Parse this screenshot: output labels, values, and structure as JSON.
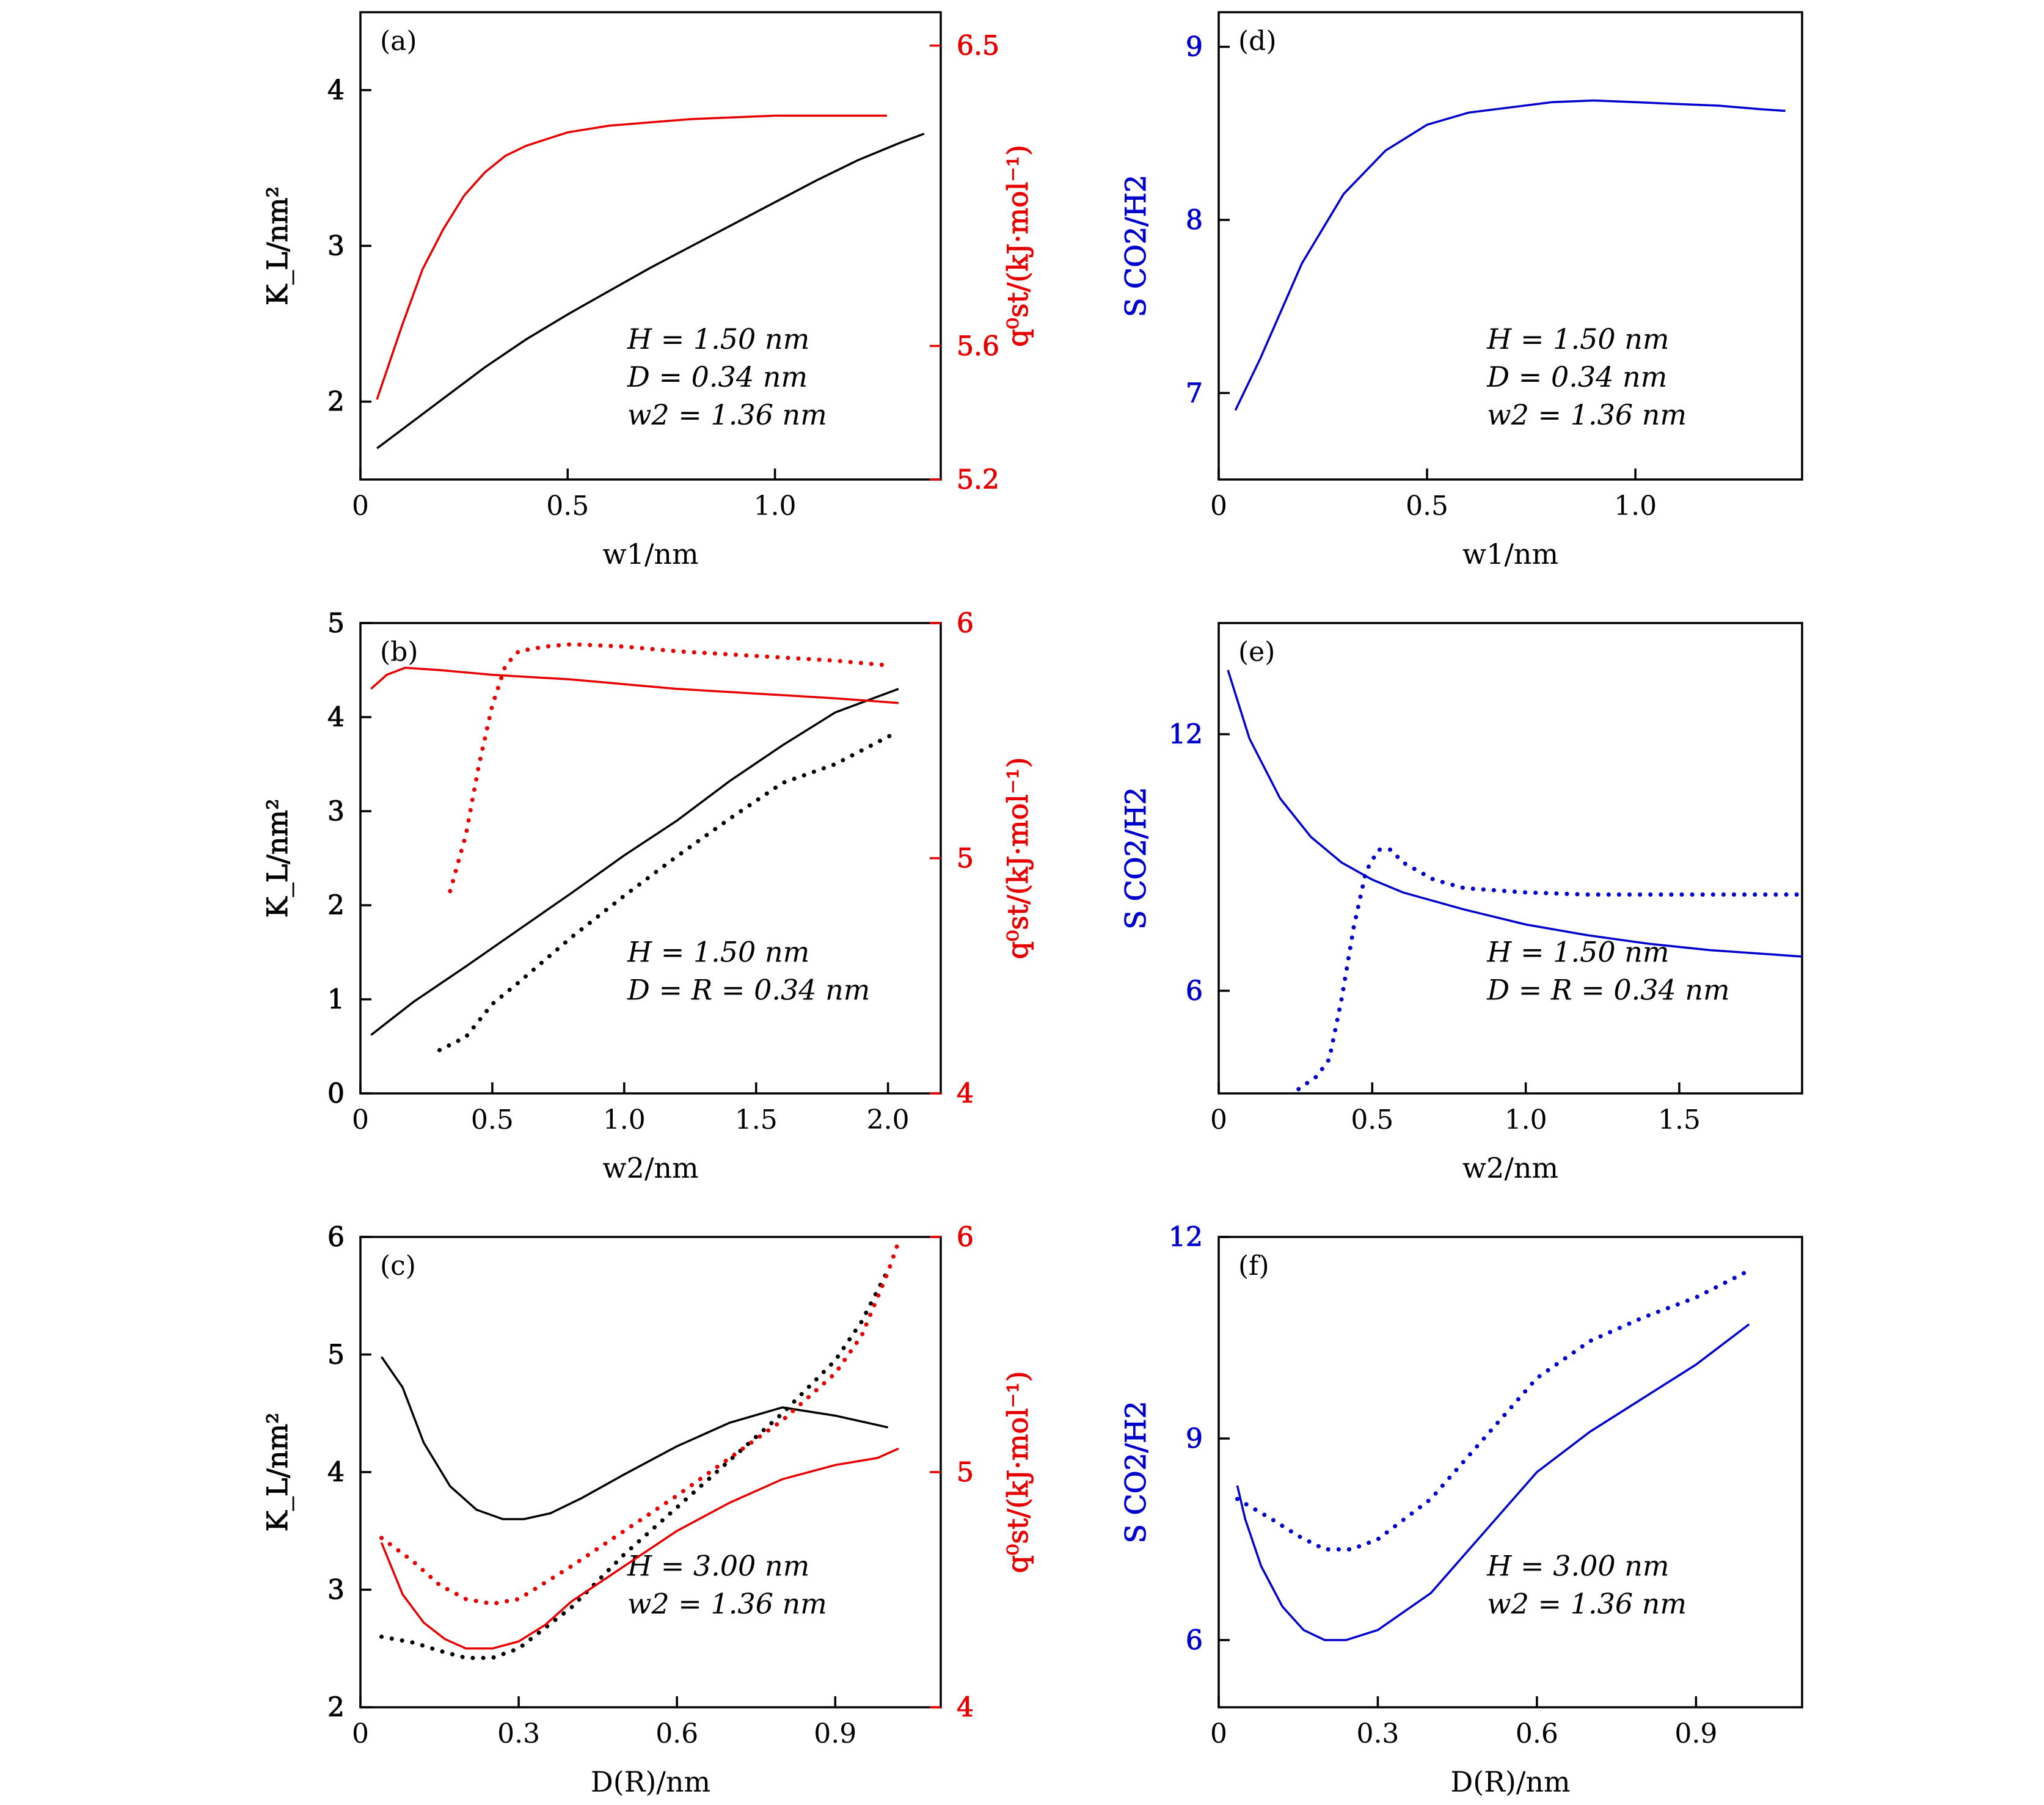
{
  "figure": {
    "label_ylabel_left": "K_L/nm²",
    "label_ylabel_right": "q⁰st/(kJ·mol⁻¹)",
    "label_ylabel_sel": "S CO2/H2",
    "colors": {
      "k": "#000000",
      "q": "#e60000",
      "s": "#0000cc"
    }
  },
  "chart_data": [
    {
      "id": "a",
      "panel_label": "(a)",
      "type": "line",
      "xlabel": "w1/nm",
      "ylabel": "K_L/nm²",
      "y2label": "q⁰st/(kJ·mol⁻¹)",
      "xlim": [
        0,
        1.4
      ],
      "ylim": [
        1.5,
        4.5
      ],
      "y2lim": [
        5.2,
        6.6
      ],
      "xticks": [
        "0",
        "0.5",
        "1.0"
      ],
      "yticks": [
        "2",
        "3",
        "4"
      ],
      "y2ticks": [
        "5.2",
        "5.6",
        "6.5"
      ],
      "annotations": [
        "H = 1.50 nm",
        "D = 0.34 nm",
        "w2 = 1.36 nm"
      ],
      "series": [
        {
          "name": "K_L",
          "axis": "left",
          "style": "solid",
          "color": "k",
          "x": [
            0.04,
            0.1,
            0.2,
            0.3,
            0.4,
            0.5,
            0.6,
            0.7,
            0.8,
            0.9,
            1.0,
            1.1,
            1.2,
            1.3,
            1.36
          ],
          "y": [
            1.7,
            1.82,
            2.02,
            2.22,
            2.4,
            2.56,
            2.71,
            2.86,
            3.0,
            3.14,
            3.28,
            3.42,
            3.55,
            3.66,
            3.72
          ]
        },
        {
          "name": "q0st",
          "axis": "right",
          "style": "solid",
          "color": "r",
          "x": [
            0.04,
            0.1,
            0.15,
            0.2,
            0.25,
            0.3,
            0.35,
            0.4,
            0.5,
            0.6,
            0.7,
            0.8,
            0.9,
            1.0,
            1.1,
            1.2,
            1.27
          ],
          "y": [
            5.44,
            5.66,
            5.83,
            5.95,
            6.05,
            6.12,
            6.17,
            6.2,
            6.24,
            6.26,
            6.27,
            6.28,
            6.285,
            6.29,
            6.29,
            6.29,
            6.29
          ]
        }
      ]
    },
    {
      "id": "b",
      "panel_label": "(b)",
      "type": "line",
      "xlabel": "w2/nm",
      "ylabel": "K_L/nm²",
      "y2label": "q⁰st/(kJ·mol⁻¹)",
      "xlim": [
        0,
        2.2
      ],
      "ylim": [
        0,
        5
      ],
      "y2lim": [
        4,
        6
      ],
      "xticks": [
        "0",
        "0.5",
        "1.0",
        "1.5",
        "2.0"
      ],
      "yticks": [
        "0",
        "1",
        "2",
        "3",
        "4",
        "5"
      ],
      "y2ticks": [
        "4",
        "5",
        "6"
      ],
      "annotations": [
        "H = 1.50 nm",
        "D = R = 0.34 nm"
      ],
      "series": [
        {
          "name": "K_L solid",
          "axis": "left",
          "style": "solid",
          "color": "k",
          "x": [
            0.04,
            0.2,
            0.4,
            0.6,
            0.8,
            1.0,
            1.2,
            1.4,
            1.6,
            1.8,
            2.04
          ],
          "y": [
            0.62,
            0.97,
            1.35,
            1.74,
            2.13,
            2.53,
            2.9,
            3.32,
            3.7,
            4.05,
            4.3
          ]
        },
        {
          "name": "K_L dotted",
          "axis": "left",
          "style": "dotted",
          "color": "k",
          "x": [
            0.3,
            0.4,
            0.5,
            0.6,
            0.8,
            1.0,
            1.2,
            1.4,
            1.6,
            1.8,
            2.02
          ],
          "y": [
            0.46,
            0.6,
            0.95,
            1.18,
            1.66,
            2.1,
            2.52,
            2.92,
            3.3,
            3.5,
            3.82
          ]
        },
        {
          "name": "q0st solid",
          "axis": "right",
          "style": "solid",
          "color": "r",
          "x": [
            0.04,
            0.1,
            0.17,
            0.3,
            0.5,
            0.8,
            1.0,
            1.2,
            1.5,
            1.8,
            2.04
          ],
          "y": [
            5.72,
            5.78,
            5.81,
            5.8,
            5.78,
            5.76,
            5.74,
            5.72,
            5.7,
            5.68,
            5.66
          ]
        },
        {
          "name": "q0st dotted",
          "axis": "right",
          "style": "dotted",
          "color": "r",
          "x": [
            0.34,
            0.4,
            0.45,
            0.5,
            0.55,
            0.6,
            0.7,
            0.8,
            1.0,
            1.2,
            1.5,
            1.8,
            2.0
          ],
          "y": [
            4.86,
            5.1,
            5.4,
            5.65,
            5.82,
            5.88,
            5.9,
            5.91,
            5.9,
            5.88,
            5.86,
            5.84,
            5.82
          ]
        }
      ]
    },
    {
      "id": "c",
      "panel_label": "(c)",
      "type": "line",
      "xlabel": "D(R)/nm",
      "ylabel": "K_L/nm²",
      "y2label": "q⁰st/(kJ·mol⁻¹)",
      "xlim": [
        0,
        1.1
      ],
      "ylim": [
        2,
        6
      ],
      "y2lim": [
        4,
        6
      ],
      "xticks": [
        "0",
        "0.3",
        "0.6",
        "0.9"
      ],
      "yticks": [
        "2",
        "3",
        "4",
        "5",
        "6"
      ],
      "y2ticks": [
        "4",
        "5",
        "6"
      ],
      "annotations": [
        "H = 3.00 nm",
        "w2 = 1.36 nm"
      ],
      "series": [
        {
          "name": "K_L solid",
          "axis": "left",
          "style": "solid",
          "color": "k",
          "x": [
            0.04,
            0.08,
            0.12,
            0.17,
            0.22,
            0.27,
            0.31,
            0.36,
            0.42,
            0.5,
            0.6,
            0.7,
            0.8,
            0.9,
            1.0
          ],
          "y": [
            4.98,
            4.72,
            4.25,
            3.88,
            3.68,
            3.6,
            3.6,
            3.65,
            3.78,
            3.98,
            4.22,
            4.42,
            4.55,
            4.48,
            4.38
          ]
        },
        {
          "name": "K_L dotted",
          "axis": "left",
          "style": "dotted",
          "color": "k",
          "x": [
            0.04,
            0.1,
            0.15,
            0.2,
            0.25,
            0.3,
            0.4,
            0.5,
            0.6,
            0.7,
            0.8,
            0.9,
            0.95,
            1.0
          ],
          "y": [
            2.6,
            2.55,
            2.48,
            2.42,
            2.42,
            2.5,
            2.85,
            3.3,
            3.7,
            4.1,
            4.5,
            4.95,
            5.28,
            5.72
          ]
        },
        {
          "name": "q0st solid",
          "axis": "right",
          "style": "solid",
          "color": "r",
          "x": [
            0.04,
            0.08,
            0.12,
            0.16,
            0.2,
            0.25,
            0.3,
            0.35,
            0.4,
            0.5,
            0.6,
            0.7,
            0.8,
            0.9,
            0.98,
            1.02
          ],
          "y": [
            4.7,
            4.48,
            4.36,
            4.29,
            4.25,
            4.25,
            4.28,
            4.35,
            4.45,
            4.6,
            4.75,
            4.87,
            4.97,
            5.03,
            5.06,
            5.1
          ]
        },
        {
          "name": "q0st dotted",
          "axis": "right",
          "style": "dotted",
          "color": "r",
          "x": [
            0.04,
            0.1,
            0.15,
            0.2,
            0.25,
            0.3,
            0.4,
            0.5,
            0.6,
            0.7,
            0.8,
            0.9,
            0.95,
            1.0,
            1.02
          ],
          "y": [
            4.72,
            4.62,
            4.52,
            4.46,
            4.44,
            4.46,
            4.6,
            4.75,
            4.9,
            5.06,
            5.22,
            5.42,
            5.58,
            5.85,
            5.98
          ]
        }
      ]
    },
    {
      "id": "d",
      "panel_label": "(d)",
      "type": "line",
      "xlabel": "w1/nm",
      "ylabel": "S CO2/H2",
      "xlim": [
        0,
        1.4
      ],
      "ylim": [
        6.5,
        9.2
      ],
      "xticks": [
        "0",
        "0.5",
        "1.0"
      ],
      "yticks": [
        "7",
        "8",
        "9"
      ],
      "annotations": [
        "H = 1.50 nm",
        "D = 0.34 nm",
        "w2 = 1.36 nm"
      ],
      "series": [
        {
          "name": "S",
          "axis": "left",
          "style": "solid",
          "color": "s",
          "x": [
            0.04,
            0.1,
            0.2,
            0.3,
            0.4,
            0.5,
            0.6,
            0.7,
            0.8,
            0.9,
            1.0,
            1.1,
            1.2,
            1.3,
            1.36
          ],
          "y": [
            6.9,
            7.2,
            7.75,
            8.15,
            8.4,
            8.55,
            8.62,
            8.65,
            8.68,
            8.69,
            8.68,
            8.67,
            8.66,
            8.64,
            8.63
          ]
        }
      ]
    },
    {
      "id": "e",
      "panel_label": "(e)",
      "type": "line",
      "xlabel": "w2/nm",
      "ylabel": "S CO2/H2",
      "xlim": [
        0,
        1.9
      ],
      "ylim": [
        3.6,
        14.6
      ],
      "xticks": [
        "0",
        "0.5",
        "1.0",
        "1.5"
      ],
      "yticks": [
        "6",
        "12"
      ],
      "annotations": [
        "H = 1.50 nm",
        "D = R = 0.34 nm"
      ],
      "series": [
        {
          "name": "S solid",
          "axis": "left",
          "style": "solid",
          "color": "s",
          "x": [
            0.03,
            0.1,
            0.2,
            0.3,
            0.4,
            0.5,
            0.6,
            0.8,
            1.0,
            1.2,
            1.4,
            1.6,
            1.9
          ],
          "y": [
            13.5,
            11.9,
            10.5,
            9.6,
            9.0,
            8.6,
            8.3,
            7.9,
            7.55,
            7.3,
            7.1,
            6.95,
            6.8
          ]
        },
        {
          "name": "S dotted",
          "axis": "left",
          "style": "dotted",
          "color": "s",
          "x": [
            0.26,
            0.32,
            0.36,
            0.4,
            0.44,
            0.48,
            0.52,
            0.56,
            0.6,
            0.7,
            0.8,
            1.0,
            1.2,
            1.5,
            1.9
          ],
          "y": [
            3.7,
            4.0,
            4.4,
            5.8,
            7.5,
            8.8,
            9.3,
            9.3,
            9.0,
            8.6,
            8.4,
            8.3,
            8.25,
            8.25,
            8.25
          ]
        }
      ]
    },
    {
      "id": "f",
      "panel_label": "(f)",
      "type": "line",
      "xlabel": "D(R)/nm",
      "ylabel": "S CO2/H2",
      "xlim": [
        0,
        1.1
      ],
      "ylim": [
        5,
        12
      ],
      "xticks": [
        "0",
        "0.3",
        "0.6",
        "0.9"
      ],
      "yticks": [
        "6",
        "9",
        "12"
      ],
      "annotations": [
        "H = 3.00 nm",
        "w2 = 1.36 nm"
      ],
      "series": [
        {
          "name": "S solid",
          "axis": "left",
          "style": "solid",
          "color": "s",
          "x": [
            0.035,
            0.05,
            0.08,
            0.12,
            0.16,
            0.2,
            0.24,
            0.3,
            0.4,
            0.5,
            0.6,
            0.7,
            0.8,
            0.9,
            1.0
          ],
          "y": [
            8.3,
            7.8,
            7.1,
            6.5,
            6.15,
            6.0,
            6.0,
            6.15,
            6.7,
            7.6,
            8.5,
            9.1,
            9.6,
            10.1,
            10.7
          ]
        },
        {
          "name": "S dotted",
          "axis": "left",
          "style": "dotted",
          "color": "s",
          "x": [
            0.035,
            0.1,
            0.15,
            0.2,
            0.25,
            0.3,
            0.4,
            0.5,
            0.6,
            0.7,
            0.8,
            0.9,
            1.0
          ],
          "y": [
            8.1,
            7.8,
            7.55,
            7.35,
            7.35,
            7.5,
            8.1,
            9.0,
            9.9,
            10.45,
            10.8,
            11.1,
            11.5
          ]
        }
      ]
    }
  ]
}
